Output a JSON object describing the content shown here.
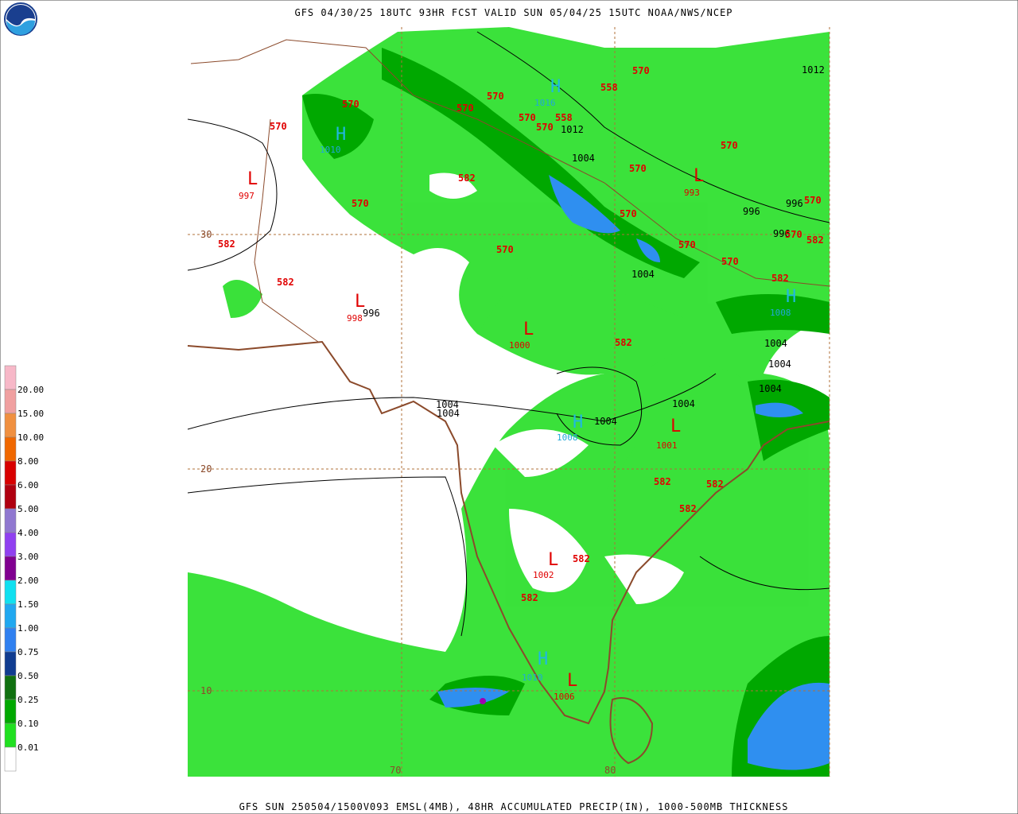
{
  "header": {
    "title": "GFS 04/30/25 18UTC 93HR FCST VALID SUN 05/04/25 15UTC NOAA/NWS/NCEP"
  },
  "footer": {
    "caption": "GFS SUN 250504/1500V093 EMSL(4MB), 48HR ACCUMULATED PRECIP(IN), 1000-500MB THICKNESS"
  },
  "legend": {
    "labels": [
      "20.00",
      "15.00",
      "10.00",
      "8.00",
      "6.00",
      "5.00",
      "4.00",
      "3.00",
      "2.00",
      "1.50",
      "1.00",
      "0.75",
      "0.50",
      "0.25",
      "0.10",
      "0.01"
    ],
    "colors": [
      "#f7b8c8",
      "#f0a0a0",
      "#f09040",
      "#f06800",
      "#d80000",
      "#b00010",
      "#9078d0",
      "#9040f0",
      "#800090",
      "#10e0f0",
      "#20a8f0",
      "#3080f0",
      "#103c90",
      "#107010",
      "#00a800",
      "#20e020",
      "#ffffff"
    ]
  },
  "map": {
    "grid_labels": [
      "30",
      "20",
      "10",
      "70",
      "80"
    ],
    "centers": [
      {
        "letter": "H",
        "value": "1016"
      },
      {
        "letter": "H",
        "value": "1010"
      },
      {
        "letter": "L",
        "value": "997"
      },
      {
        "letter": "L",
        "value": "993"
      },
      {
        "letter": "L",
        "value": "998"
      },
      {
        "letter": "L",
        "value": "1000"
      },
      {
        "letter": "H",
        "value": "1008"
      },
      {
        "letter": "L",
        "value": "1001"
      },
      {
        "letter": "L",
        "value": "1002"
      },
      {
        "letter": "H",
        "value": "1010"
      },
      {
        "letter": "L",
        "value": "1006"
      },
      {
        "letter": "H",
        "value": "1008"
      }
    ],
    "isobar_labels": [
      "1012",
      "1012",
      "1004",
      "996",
      "996",
      "996",
      "996",
      "1004",
      "1004",
      "1004",
      "1004",
      "1004",
      "1004",
      "1004",
      "1004"
    ],
    "thickness_labels": [
      "570",
      "558",
      "570",
      "570",
      "570",
      "570",
      "558",
      "570",
      "570",
      "570",
      "570",
      "582",
      "570",
      "570",
      "570",
      "570",
      "582",
      "582",
      "570",
      "570",
      "570",
      "582",
      "582",
      "582",
      "582",
      "582",
      "582",
      "582",
      "582"
    ]
  }
}
